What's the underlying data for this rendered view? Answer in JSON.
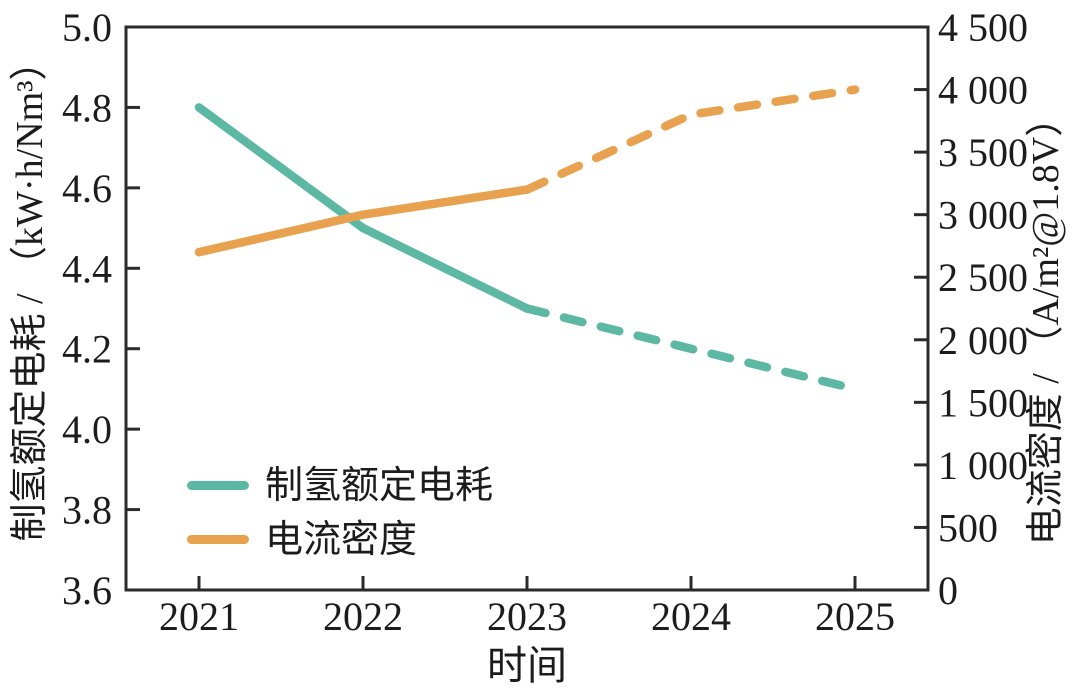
{
  "figure": {
    "background": "#ffffff",
    "axis_color": "#2b2b2b",
    "text_color": "#1c1c1c"
  },
  "chart_data": {
    "type": "line",
    "x_axis": {
      "label": "时间",
      "tick_labels": [
        "2021",
        "2022",
        "2023",
        "2024",
        "2025"
      ]
    },
    "left_axis": {
      "label": "制氢额定电耗 / （kW·h/Nm³）",
      "range": [
        3.6,
        5.0
      ],
      "tick_step": 0.2,
      "tick_labels": [
        "5.0",
        "4.8",
        "4.6",
        "4.4",
        "4.2",
        "4.0",
        "3.8",
        "3.6"
      ]
    },
    "right_axis": {
      "label": "电流密度 / （A/m²@1.8V）",
      "range": [
        0,
        4500
      ],
      "tick_step": 500,
      "tick_labels": [
        "4 500",
        "4 000",
        "3 500",
        "3 000",
        "2 500",
        "2 000",
        "1 500",
        "1 000",
        "500",
        "0"
      ]
    },
    "series": [
      {
        "name": "制氢额定电耗",
        "axis": "left",
        "color": "#5db8a3",
        "values": [
          4.8,
          4.5,
          4.3,
          4.2,
          4.1
        ],
        "solid_until_index": 2,
        "dashed_from_x": "2023"
      },
      {
        "name": "电流密度",
        "axis": "right",
        "color": "#e8a14e",
        "values": [
          2700,
          3000,
          3200,
          3800,
          4000
        ],
        "solid_until_index": 2,
        "dashed_from_x": "2023"
      }
    ],
    "legend": [
      {
        "label": "制氢额定电耗",
        "color": "#5db8a3"
      },
      {
        "label": "电流密度",
        "color": "#e8a14e"
      }
    ],
    "legend_position": "lower-left",
    "grid": false
  }
}
